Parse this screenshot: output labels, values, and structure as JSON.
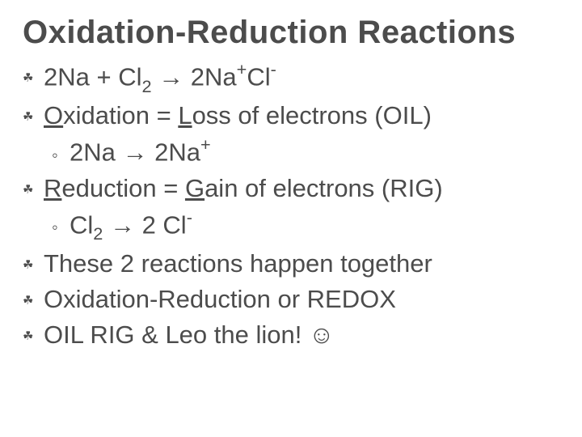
{
  "colors": {
    "text": "#4c4c4c",
    "background": "#ffffff"
  },
  "title": "Oxidation-Reduction Reactions",
  "bullets": [
    {
      "type": "main",
      "html": "2Na + Cl<span class='subn'>2</span> → 2Na<span class='supn'>+</span>Cl<span class='supn'>-</span>"
    },
    {
      "type": "main",
      "html": "<span class='u'>O</span>xidation = <span class='u'>L</span>oss of electrons (OIL)"
    },
    {
      "type": "sub",
      "html": "2Na → 2Na<span class='supn'>+</span>"
    },
    {
      "type": "main",
      "html": "<span class='u'>R</span>eduction = <span class='u'>G</span>ain of electrons (RIG)"
    },
    {
      "type": "sub",
      "html": "Cl<span class='subn'>2</span> → 2 Cl<span class='supn'>-</span>"
    },
    {
      "type": "main",
      "html": "These 2 reactions happen together"
    },
    {
      "type": "main",
      "html": "Oxidation-Reduction or REDOX"
    },
    {
      "type": "main",
      "html": "OIL RIG &amp; Leo the lion!  ☺"
    }
  ],
  "markers": {
    "main": "☘",
    "sub": "◦"
  },
  "typography": {
    "title_fontsize": 40,
    "title_weight": 600,
    "body_fontsize": 31,
    "line_height": 1.42,
    "font_family": "Segoe UI / Helvetica Neue / Arial"
  }
}
